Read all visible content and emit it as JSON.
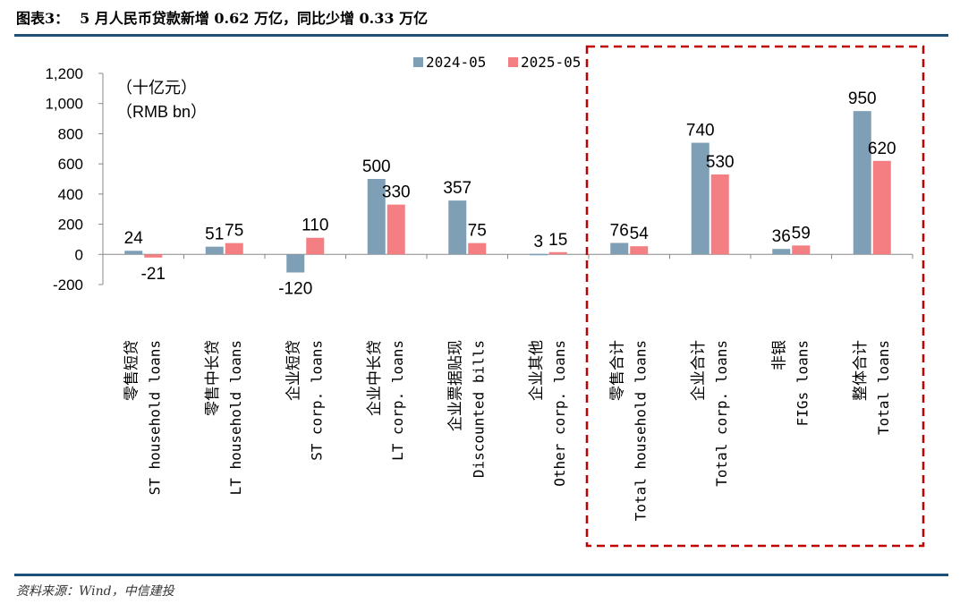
{
  "header": {
    "figure_label": "图表3：",
    "title": "5 月人民币贷款新增 0.62 万亿，同比少增 0.33 万亿"
  },
  "footer": {
    "source": "资料来源：Wind，中信建投"
  },
  "colors": {
    "series_2024": "#7f9fb6",
    "series_2025": "#f47f82",
    "highlight_box": "#c00000",
    "rule": "#1f4e79"
  },
  "chart_data": {
    "type": "bar",
    "unit_cn": "（十亿元）",
    "unit_en": "（RMB bn）",
    "ylim": [
      -200,
      1200
    ],
    "yticks": [
      "1,200",
      "1,000",
      "800",
      "600",
      "400",
      "200",
      "0",
      "-200"
    ],
    "grid": false,
    "legend_position": "top-right",
    "categories": [
      {
        "cn": "零售短贷",
        "en": "ST household loans"
      },
      {
        "cn": "零售中长贷",
        "en": "LT household loans"
      },
      {
        "cn": "企业短贷",
        "en": "ST corp. loans"
      },
      {
        "cn": "企业中长贷",
        "en": "LT corp. loans"
      },
      {
        "cn": "企业票据贴现",
        "en": "Discounted bills"
      },
      {
        "cn": "企业其他",
        "en": "Other corp. loans"
      },
      {
        "cn": "零售合计",
        "en": "Total household loans"
      },
      {
        "cn": "企业合计",
        "en": "Total corp. loans"
      },
      {
        "cn": "非银",
        "en": "FIGs loans"
      },
      {
        "cn": "整体合计",
        "en": "Total loans"
      }
    ],
    "series": [
      {
        "name": "2024-05",
        "values": [
          24,
          51,
          -120,
          500,
          357,
          3,
          76,
          740,
          36,
          950
        ],
        "labels": [
          "24",
          "51",
          "-120",
          "500",
          "357",
          "3",
          "76",
          "740",
          "36",
          "950"
        ]
      },
      {
        "name": "2025-05",
        "values": [
          -21,
          75,
          110,
          330,
          75,
          15,
          54,
          530,
          59,
          620
        ],
        "labels": [
          "-21",
          "75",
          "110",
          "330",
          "75",
          "15",
          "54",
          "530",
          "59",
          "620"
        ]
      }
    ],
    "highlight_range": [
      6,
      9
    ]
  }
}
